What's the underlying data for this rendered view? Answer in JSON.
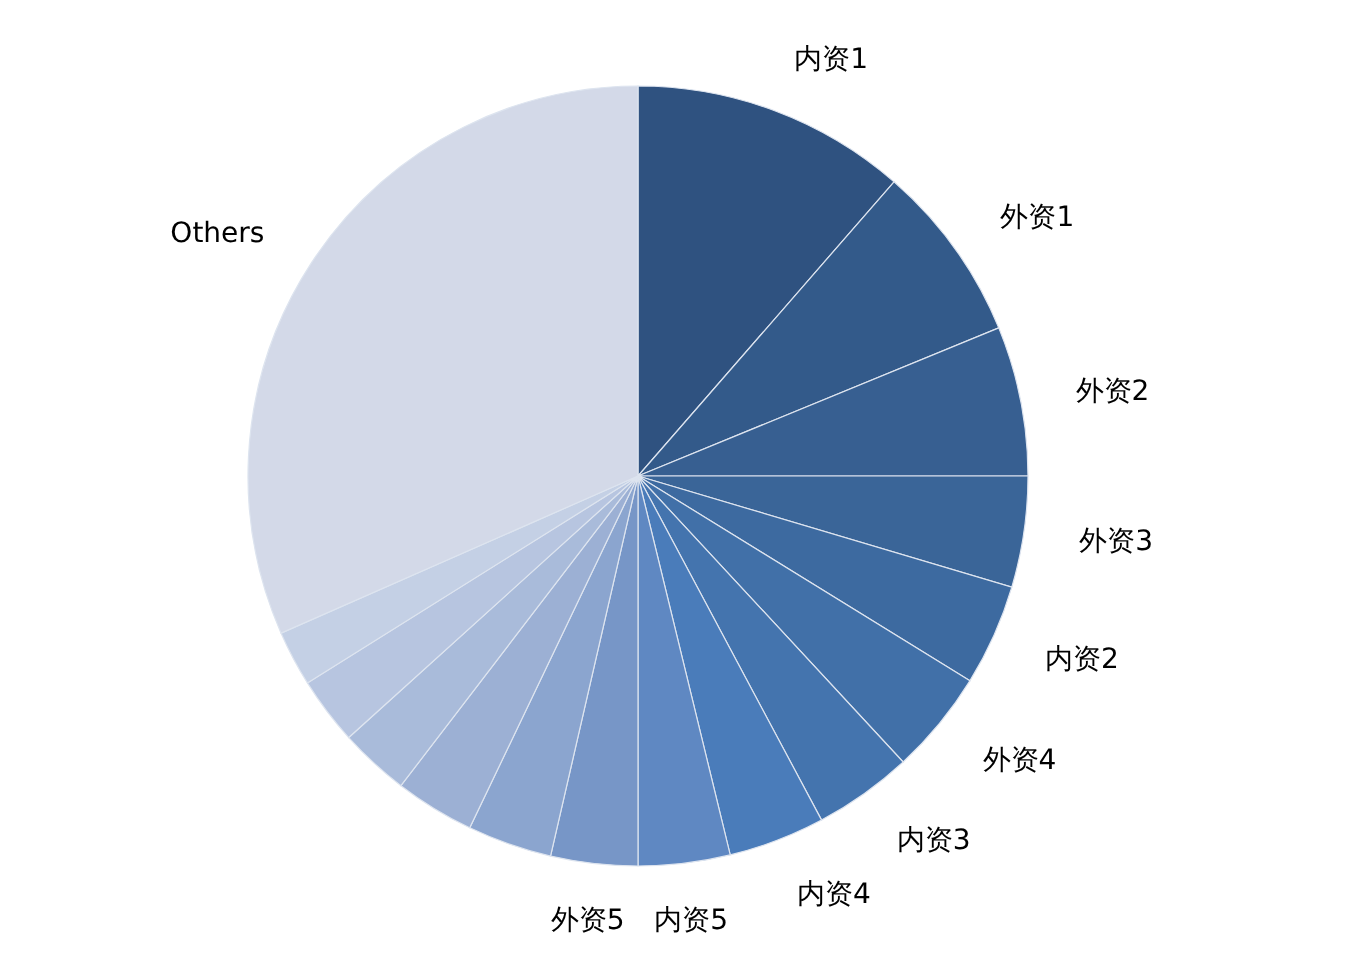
{
  "chart_data": {
    "type": "pie",
    "categories": [
      "内资1",
      "外资1",
      "外资2",
      "外资3",
      "内资2",
      "外资4",
      "内资3",
      "内资4",
      "内资5",
      "外资5",
      null,
      null,
      null,
      null,
      null,
      "Others"
    ],
    "values": [
      11.4,
      7.4,
      6.2,
      4.6,
      4.2,
      4.3,
      4.1,
      4.0,
      3.8,
      3.6,
      3.5,
      3.3,
      2.9,
      2.8,
      2.3,
      31.6
    ],
    "colors": [
      "#2f5280",
      "#335a8a",
      "#375f91",
      "#3a6598",
      "#3d6aa0",
      "#4170a8",
      "#4474ae",
      "#4a7cba",
      "#5f88c2",
      "#7796c7",
      "#8ba5cf",
      "#9cb0d4",
      "#a9bbda",
      "#b7c5e0",
      "#c4d0e5",
      "#d3d9e8"
    ],
    "legend": false
  }
}
